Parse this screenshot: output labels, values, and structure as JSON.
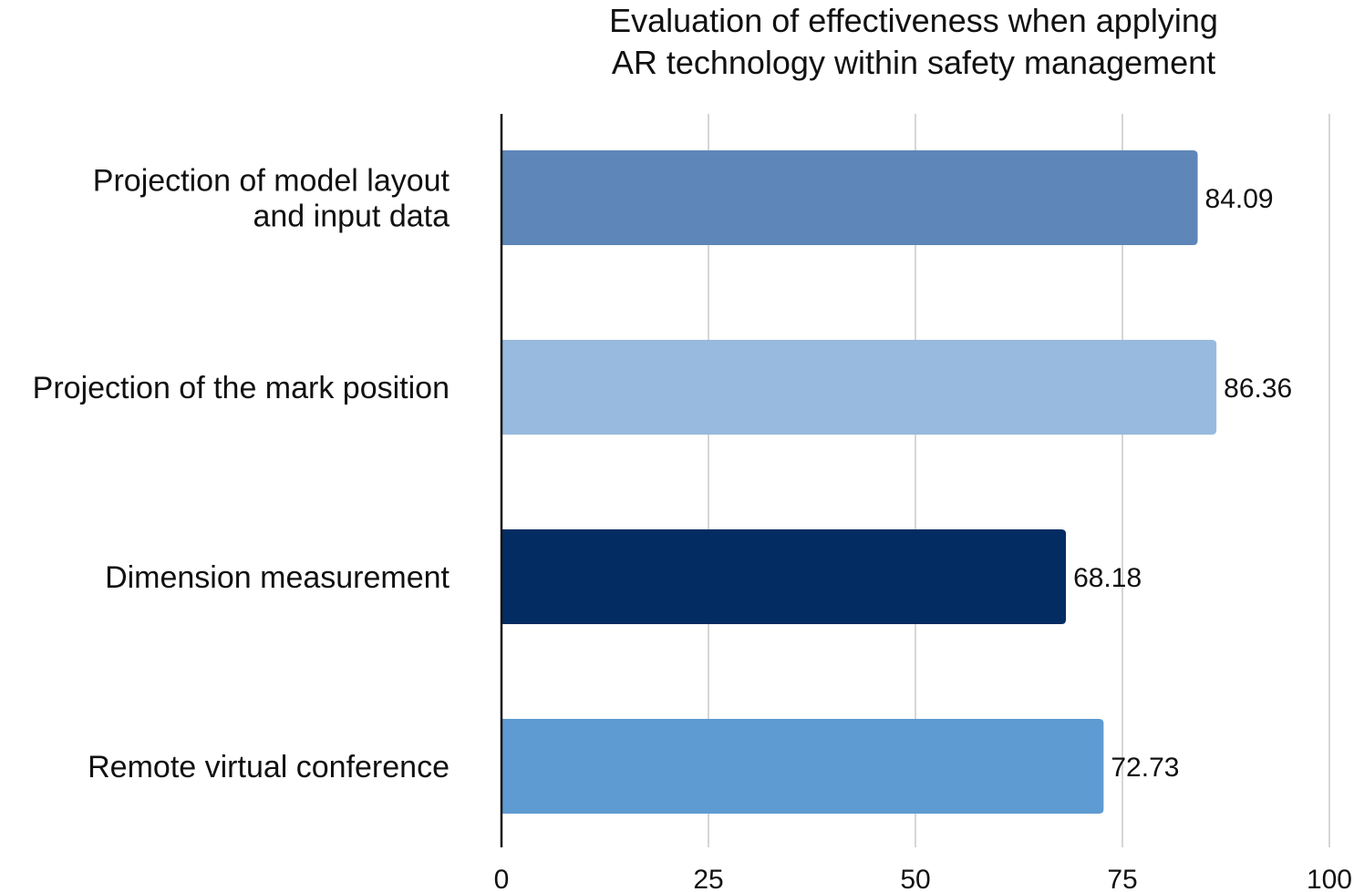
{
  "chart_data": {
    "type": "bar",
    "orientation": "horizontal",
    "title_lines": [
      "Evaluation of effectiveness when applying",
      "AR technology within safety management"
    ],
    "categories": [
      [
        "Projection of model layout",
        "and input data"
      ],
      [
        "Projection of the mark position"
      ],
      [
        "Dimension measurement"
      ],
      [
        "Remote virtual conference"
      ]
    ],
    "values": [
      84.09,
      86.36,
      68.18,
      72.73
    ],
    "value_labels": [
      "84.09",
      "86.36",
      "68.18",
      "72.73"
    ],
    "bar_colors": [
      "#5e86b8",
      "#98bade",
      "#032c63",
      "#5e9bd2"
    ],
    "xlim": [
      0,
      100
    ],
    "xticks": [
      0,
      25,
      50,
      75,
      100
    ],
    "xtick_labels": [
      "0",
      "25",
      "50",
      "75",
      "100"
    ],
    "grid": "vertical",
    "legend": "none"
  }
}
